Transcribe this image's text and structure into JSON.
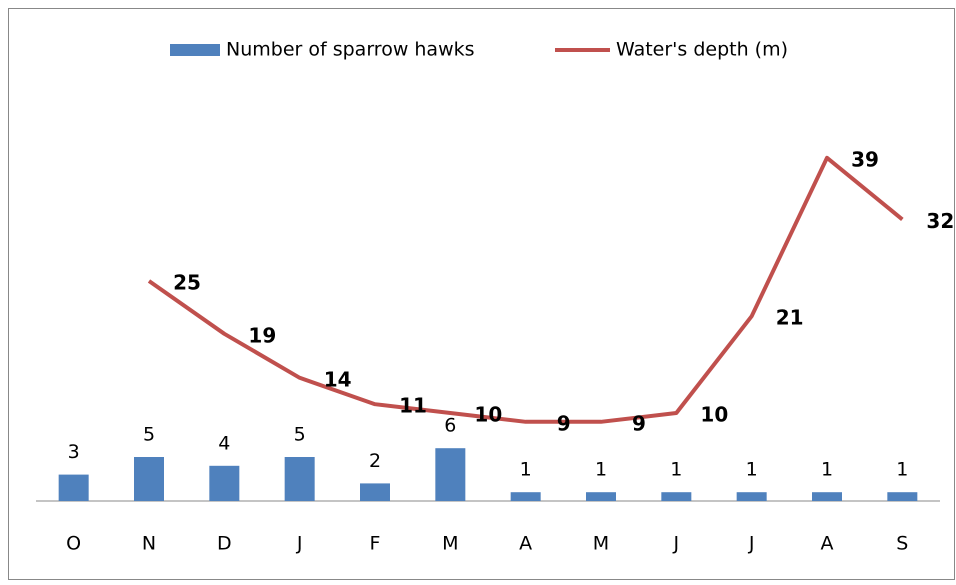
{
  "chart_data": {
    "type": "bar-line",
    "categories": [
      "O",
      "N",
      "D",
      "J",
      "F",
      "M",
      "A",
      "M",
      "J",
      "J",
      "A",
      "S"
    ],
    "series": [
      {
        "name": "Number of sparrow hawks",
        "type": "bar",
        "color": "#4f81bd",
        "values": [
          3,
          5,
          4,
          5,
          2,
          6,
          1,
          1,
          1,
          1,
          1,
          1
        ]
      },
      {
        "name": "Water's depth (m)",
        "type": "line",
        "color": "#c0504d",
        "values": [
          null,
          25,
          19,
          14,
          11,
          10,
          9,
          9,
          10,
          21,
          39,
          32
        ]
      }
    ],
    "ylim": [
      0,
      50
    ],
    "legend": "top"
  }
}
